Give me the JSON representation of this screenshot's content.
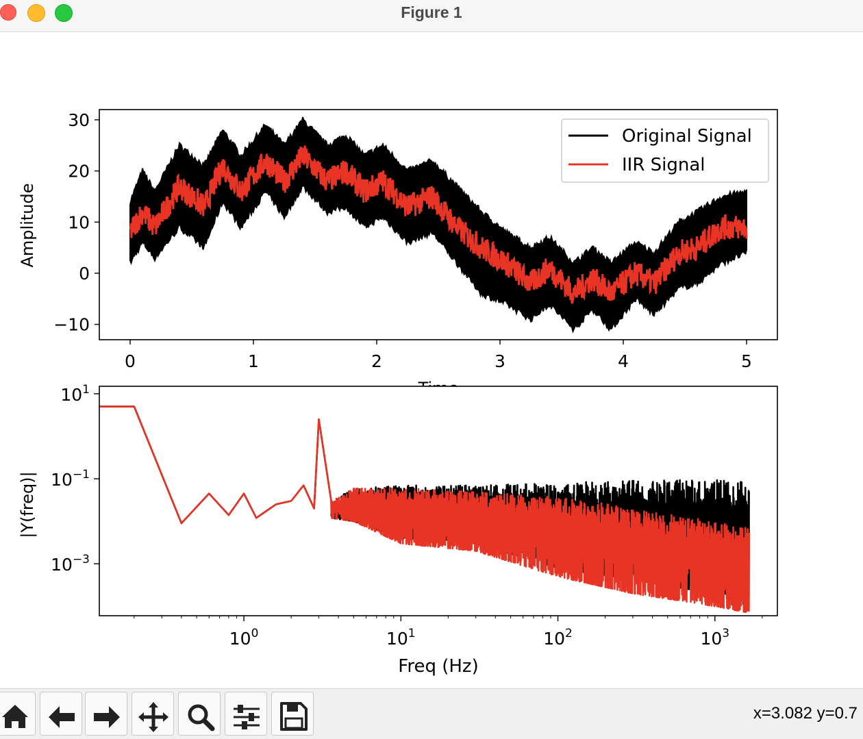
{
  "window": {
    "title": "Figure 1"
  },
  "status": {
    "coords": "x=3.082 y=0.7"
  },
  "toolbar": {
    "buttons": [
      {
        "icon": "home-icon"
      },
      {
        "icon": "back-arrow-icon"
      },
      {
        "icon": "forward-arrow-icon"
      },
      {
        "icon": "pan-move-icon"
      },
      {
        "icon": "zoom-magnifier-icon"
      },
      {
        "icon": "subplots-sliders-icon"
      },
      {
        "icon": "save-floppy-icon"
      }
    ]
  },
  "colors": {
    "original": "#000000",
    "iir": "#e83424"
  },
  "chart_data": [
    {
      "type": "line",
      "xlabel": "Time",
      "ylabel": "Amplitude",
      "xlim": [
        -0.25,
        5.25
      ],
      "ylim": [
        -13,
        32
      ],
      "xticks": [
        "0",
        "1",
        "2",
        "3",
        "4",
        "5"
      ],
      "yticks": [
        "30",
        "20",
        "10",
        "0",
        "−10"
      ],
      "legend": {
        "position": "top-right"
      },
      "series": [
        {
          "name": "Original Signal",
          "color": "#000000",
          "x": [
            0,
            0.1,
            0.2,
            0.4,
            0.6,
            0.75,
            0.9,
            1.1,
            1.25,
            1.4,
            1.6,
            1.75,
            1.9,
            2.05,
            2.25,
            2.45,
            2.65,
            2.85,
            3.05,
            3.25,
            3.4,
            3.6,
            3.75,
            3.9,
            4.1,
            4.25,
            4.45,
            4.6,
            4.8,
            5.0
          ],
          "upper": [
            14,
            20,
            16,
            25,
            21,
            28,
            23,
            29,
            25,
            30,
            25,
            27,
            23,
            25,
            20,
            22,
            17,
            12,
            8,
            5,
            7,
            2,
            5,
            2,
            6,
            4,
            10,
            12,
            15,
            16
          ],
          "lower": [
            2,
            6,
            3,
            9,
            5,
            14,
            9,
            16,
            11,
            17,
            12,
            13,
            9,
            11,
            6,
            8,
            2,
            -4,
            -6,
            -9,
            -6,
            -11,
            -7,
            -11,
            -5,
            -8,
            -3,
            -2,
            2,
            4
          ]
        },
        {
          "name": "IIR Signal",
          "color": "#e83424",
          "x": [
            0,
            0.1,
            0.2,
            0.4,
            0.6,
            0.75,
            0.9,
            1.1,
            1.25,
            1.4,
            1.6,
            1.75,
            1.9,
            2.05,
            2.25,
            2.45,
            2.65,
            2.85,
            3.05,
            3.25,
            3.4,
            3.6,
            3.75,
            3.9,
            4.1,
            4.25,
            4.45,
            4.6,
            4.8,
            5.0
          ],
          "mid": [
            8,
            12,
            9,
            17,
            13,
            21,
            16,
            22,
            18,
            23,
            18,
            20,
            16,
            18,
            13,
            15,
            9,
            5,
            2,
            -2,
            1,
            -4,
            -1,
            -4,
            0,
            -2,
            4,
            5,
            9,
            9
          ]
        }
      ]
    },
    {
      "type": "line",
      "xlabel": "Freq (Hz)",
      "ylabel": "|Y(freq)|",
      "xscale": "log",
      "yscale": "log",
      "xlim": [
        0.12,
        2500
      ],
      "ylim": [
        6e-05,
        15
      ],
      "xticks": [
        "10^0",
        "10^1",
        "10^2",
        "10^3"
      ],
      "yticks": [
        "10^1",
        "10^-1",
        "10^-3"
      ],
      "series": [
        {
          "name": "Original Signal",
          "color": "#000000",
          "x": [
            0.12,
            0.2,
            0.4,
            0.6,
            0.8,
            1.0,
            1.2,
            1.6,
            2.0,
            2.4,
            2.8,
            3.0,
            3.6,
            5,
            10,
            30,
            100,
            300,
            1000,
            1650
          ],
          "upper": [
            5,
            5,
            0.009,
            0.045,
            0.014,
            0.045,
            0.012,
            0.025,
            0.03,
            0.07,
            0.02,
            2.5,
            0.03,
            0.06,
            0.07,
            0.07,
            0.08,
            0.09,
            0.095,
            0.09
          ],
          "lower": [
            5,
            5,
            0.009,
            0.045,
            0.014,
            0.045,
            0.012,
            0.025,
            0.03,
            0.07,
            0.02,
            2.5,
            0.012,
            0.01,
            0.004,
            0.003,
            0.0008,
            0.0004,
            0.0002,
            0.0001
          ]
        },
        {
          "name": "IIR Signal",
          "color": "#e83424",
          "x": [
            0.12,
            0.2,
            0.4,
            0.6,
            0.8,
            1.0,
            1.2,
            1.6,
            2.0,
            2.4,
            2.8,
            3.0,
            3.6,
            5,
            10,
            30,
            100,
            300,
            1000,
            1650
          ],
          "upper": [
            5,
            5,
            0.009,
            0.045,
            0.014,
            0.045,
            0.012,
            0.025,
            0.03,
            0.07,
            0.02,
            2.5,
            0.03,
            0.06,
            0.06,
            0.05,
            0.04,
            0.02,
            0.01,
            0.007
          ],
          "lower": [
            5,
            5,
            0.009,
            0.045,
            0.014,
            0.045,
            0.012,
            0.025,
            0.03,
            0.07,
            0.02,
            2.5,
            0.012,
            0.01,
            0.003,
            0.002,
            0.0005,
            0.0002,
            0.0001,
            7e-05
          ]
        }
      ]
    }
  ]
}
